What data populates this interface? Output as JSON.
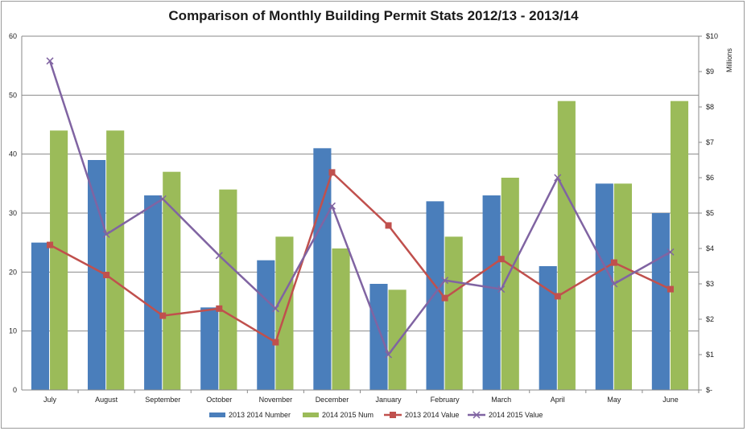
{
  "chart_data": {
    "type": "bar",
    "title": "Comparison of Monthly Building Permit Stats 2012/13 - 2013/14",
    "categories": [
      "July",
      "August",
      "September",
      "October",
      "November",
      "December",
      "January",
      "February",
      "March",
      "April",
      "May",
      "June"
    ],
    "y_left": {
      "ticks": [
        "0",
        "10",
        "20",
        "30",
        "40",
        "50",
        "60"
      ],
      "ylim": [
        0,
        60
      ]
    },
    "y_right": {
      "label": "Millions",
      "ticks": [
        "$-",
        "$1",
        "$2",
        "$3",
        "$4",
        "$5",
        "$6",
        "$7",
        "$8",
        "$9",
        "$10"
      ],
      "ylim": [
        0,
        10
      ]
    },
    "series": [
      {
        "name": "2013 2014 Number",
        "type": "bar",
        "axis": "left",
        "color": "#4a7ebb",
        "values": [
          25,
          39,
          33,
          14,
          22,
          41,
          18,
          32,
          33,
          21,
          35,
          30
        ]
      },
      {
        "name": "2014 2015 Num",
        "type": "bar",
        "axis": "left",
        "color": "#9bbb59",
        "values": [
          44,
          44,
          37,
          34,
          26,
          24,
          17,
          26,
          36,
          49,
          35,
          49
        ]
      },
      {
        "name": "2013 2014 Value",
        "type": "line",
        "axis": "right",
        "color": "#c0504d",
        "marker": "square",
        "values": [
          4.1,
          3.25,
          2.1,
          2.3,
          1.35,
          6.15,
          4.65,
          2.6,
          3.7,
          2.65,
          3.6,
          2.85
        ]
      },
      {
        "name": "2014 2015 Value",
        "type": "line",
        "axis": "right",
        "color": "#8064a2",
        "marker": "x",
        "values": [
          9.3,
          4.4,
          5.4,
          3.8,
          2.3,
          5.2,
          1.0,
          3.1,
          2.85,
          6.0,
          3.0,
          3.9
        ]
      }
    ],
    "grid": true,
    "legend": "bottom"
  }
}
